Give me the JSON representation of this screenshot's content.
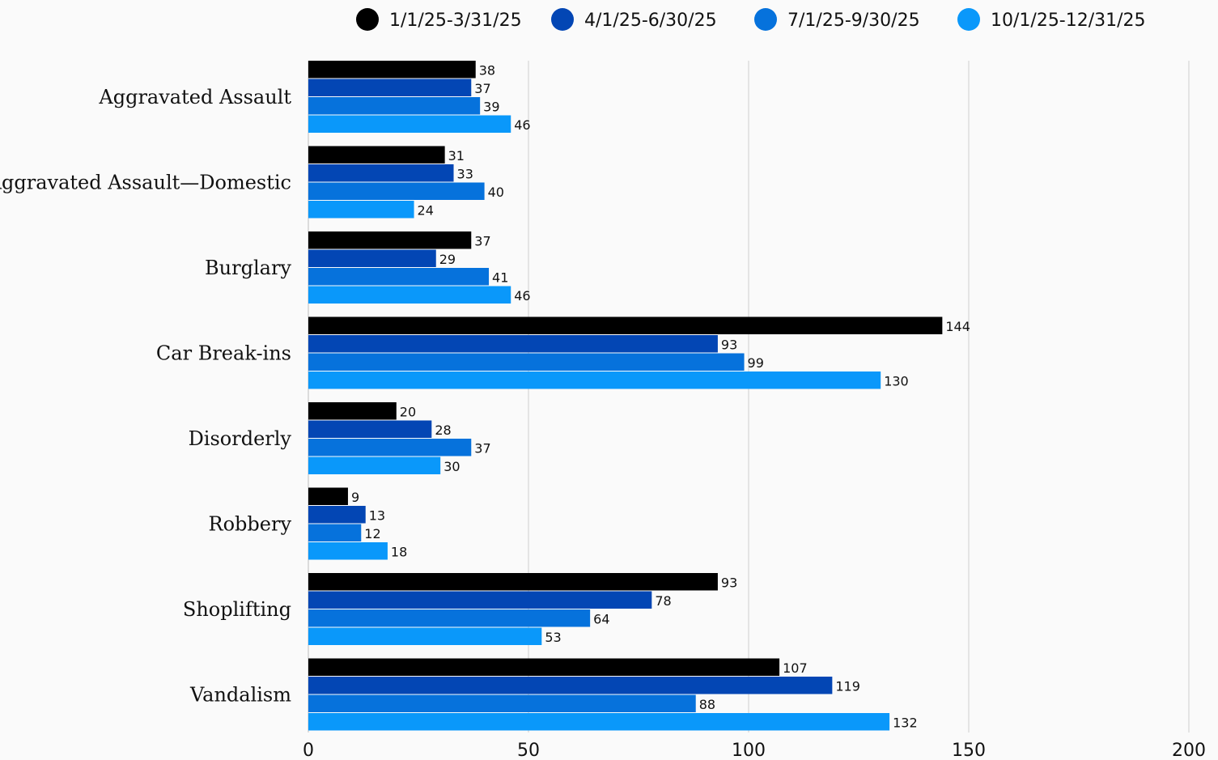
{
  "chart_data": {
    "type": "bar",
    "orientation": "horizontal",
    "title": "",
    "xlabel": "",
    "ylabel": "",
    "xlim": [
      0,
      200
    ],
    "x_ticks": [
      0,
      50,
      100,
      150,
      200
    ],
    "grid": true,
    "legend_position": "top",
    "categories": [
      "Aggravated Assault",
      "Aggravated Assault—Domestic",
      "Burglary",
      "Car Break-ins",
      "Disorderly",
      "Robbery",
      "Shoplifting",
      "Vandalism"
    ],
    "series": [
      {
        "name": "1/1/25-3/31/25",
        "color": "#000000",
        "values": [
          38,
          31,
          37,
          144,
          20,
          9,
          93,
          107
        ]
      },
      {
        "name": "4/1/25-6/30/25",
        "color": "#0346b4",
        "values": [
          37,
          33,
          29,
          93,
          28,
          13,
          78,
          119
        ]
      },
      {
        "name": "7/1/25-9/30/25",
        "color": "#0672dc",
        "values": [
          39,
          40,
          41,
          99,
          37,
          12,
          64,
          88
        ]
      },
      {
        "name": "10/1/25-12/31/25",
        "color": "#0a98fa",
        "values": [
          46,
          24,
          46,
          130,
          30,
          18,
          53,
          132
        ]
      }
    ]
  }
}
